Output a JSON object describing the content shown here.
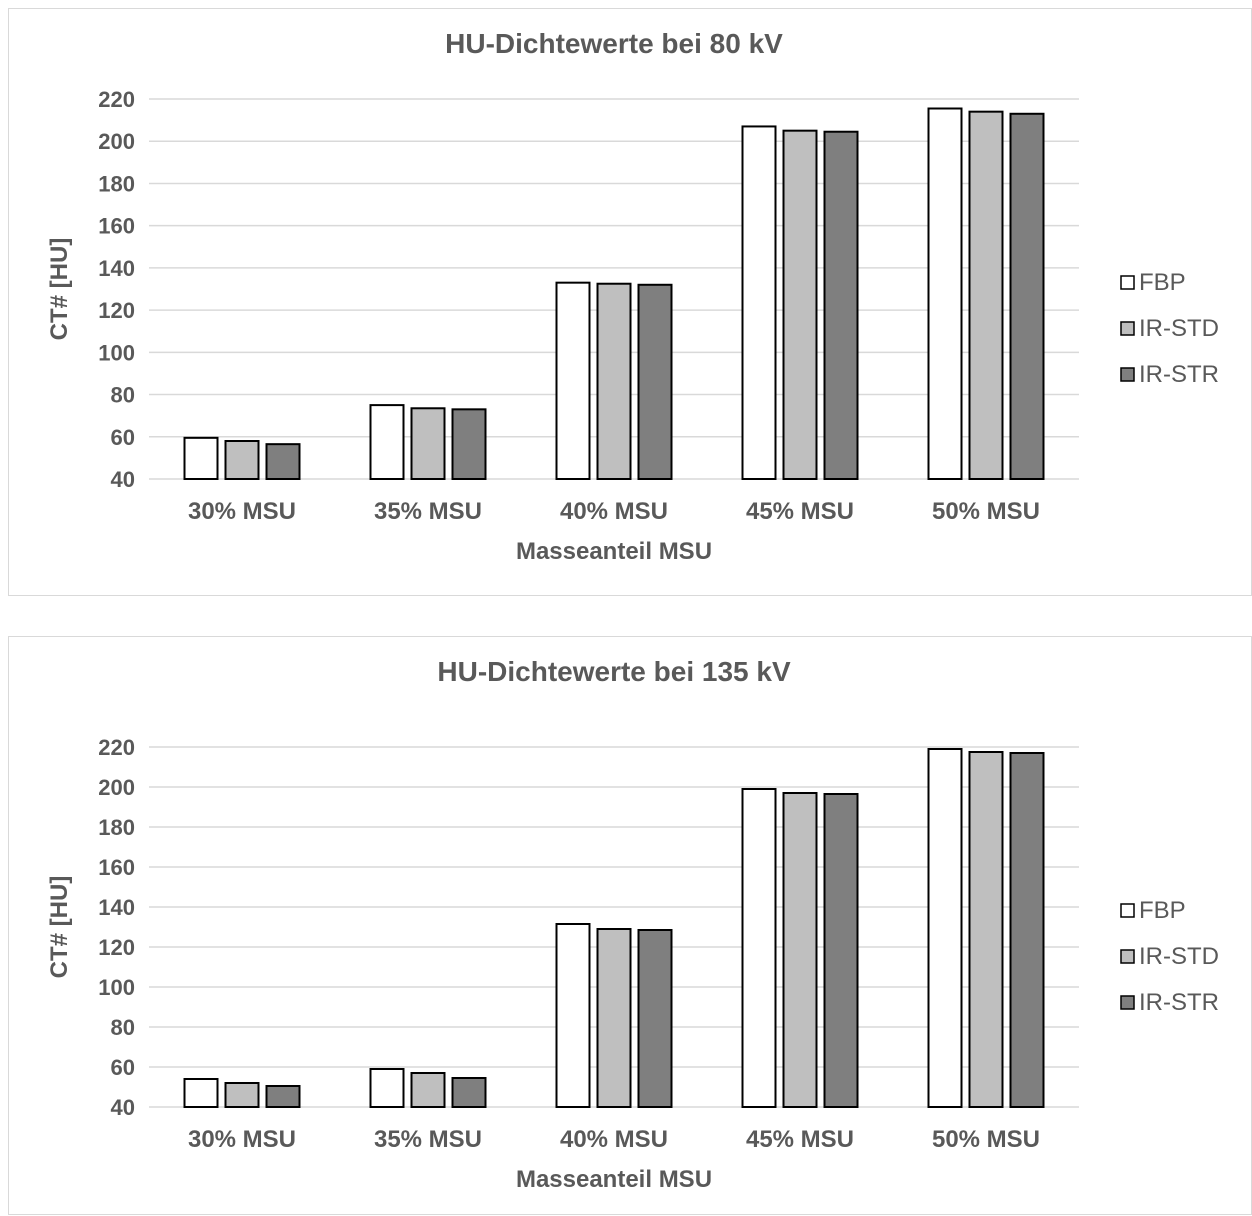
{
  "chart_data": [
    {
      "type": "bar",
      "title": "HU-Dichtewerte bei 80 kV",
      "xlabel": "Masseanteil MSU",
      "ylabel": "CT# [HU]",
      "categories": [
        "30% MSU",
        "35% MSU",
        "40% MSU",
        "45% MSU",
        "50% MSU"
      ],
      "ylim": [
        40,
        220
      ],
      "yticks": [
        40,
        60,
        80,
        100,
        120,
        140,
        160,
        180,
        200,
        220
      ],
      "grid": true,
      "legend": "right",
      "series": [
        {
          "name": "FBP",
          "color": "#ffffff",
          "values": [
            59.5,
            75,
            133,
            207,
            215.5
          ]
        },
        {
          "name": "IR-STD",
          "color": "#bfbfbf",
          "values": [
            58,
            73.5,
            132.5,
            205,
            214
          ]
        },
        {
          "name": "IR-STR",
          "color": "#7f7f7f",
          "values": [
            56.5,
            73,
            132,
            204.5,
            213
          ]
        }
      ]
    },
    {
      "type": "bar",
      "title": "HU-Dichtewerte bei 135 kV",
      "xlabel": "Masseanteil MSU",
      "ylabel": "CT# [HU]",
      "categories": [
        "30% MSU",
        "35% MSU",
        "40% MSU",
        "45% MSU",
        "50% MSU"
      ],
      "ylim": [
        40,
        220
      ],
      "yticks": [
        40,
        60,
        80,
        100,
        120,
        140,
        160,
        180,
        200,
        220
      ],
      "grid": true,
      "legend": "right",
      "series": [
        {
          "name": "FBP",
          "color": "#ffffff",
          "values": [
            54,
            59,
            131.5,
            199,
            219
          ]
        },
        {
          "name": "IR-STD",
          "color": "#bfbfbf",
          "values": [
            52,
            57,
            129,
            197,
            217.5
          ]
        },
        {
          "name": "IR-STR",
          "color": "#7f7f7f",
          "values": [
            50.5,
            54.5,
            128.5,
            196.5,
            217
          ]
        }
      ]
    }
  ]
}
